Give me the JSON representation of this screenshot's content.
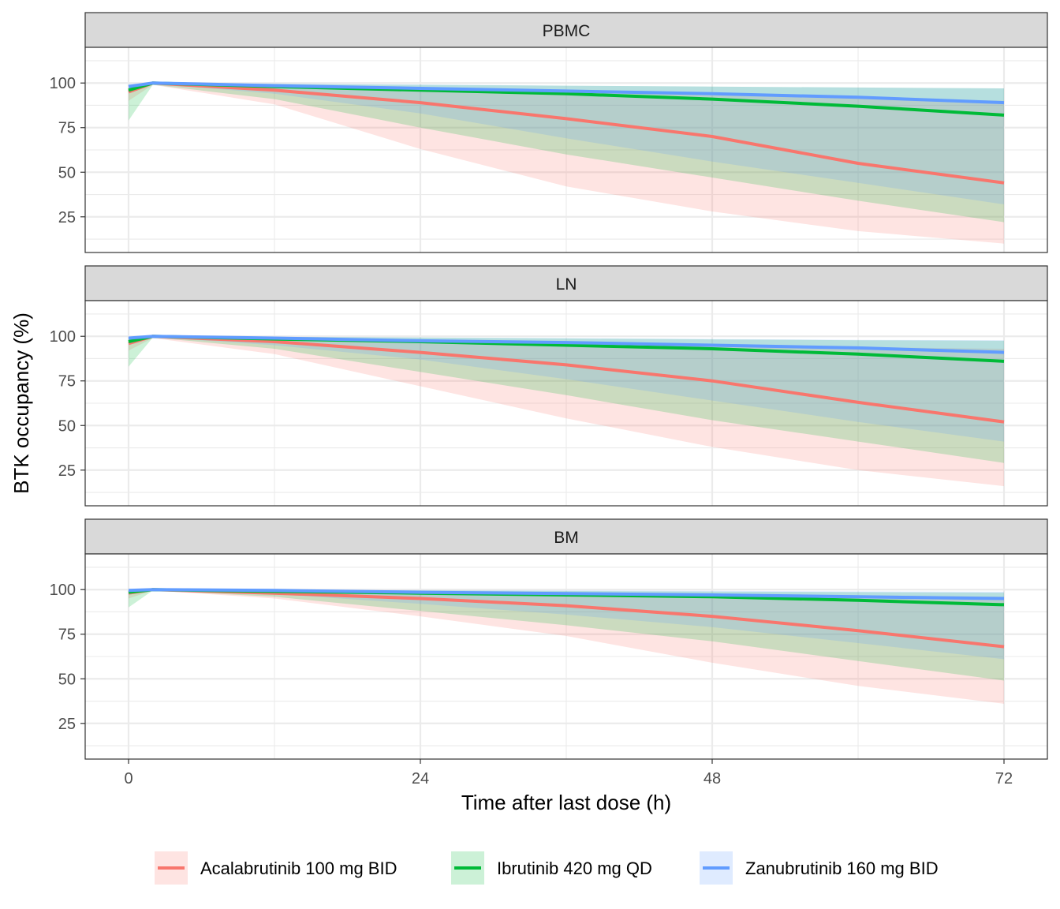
{
  "chart_data": {
    "type": "line",
    "xlabel": "Time after last dose (h)",
    "ylabel": "BTK occupancy (%)",
    "xlim": [
      0,
      72
    ],
    "ylim": [
      5,
      120
    ],
    "x_ticks": [
      0,
      24,
      48,
      72
    ],
    "y_ticks": [
      25,
      50,
      75,
      100
    ],
    "grid": true,
    "legend_position": "bottom",
    "series_styles": [
      {
        "name": "Acalabrutinib 100 mg BID",
        "color": "#F8766D"
      },
      {
        "name": "Ibrutinib 420 mg QD",
        "color": "#00BA38"
      },
      {
        "name": "Zanubrutinib 160 mg BID",
        "color": "#619CFF"
      }
    ],
    "panels": [
      {
        "label": "PBMC",
        "series": [
          {
            "name": "Acalabrutinib 100 mg BID",
            "x": [
              0,
              2,
              12,
              24,
              36,
              48,
              60,
              72
            ],
            "y": [
              95,
              100,
              96,
              89,
              80,
              70,
              55,
              44
            ],
            "lower": [
              90,
              99,
              88,
              63,
              42,
              28,
              17,
              10
            ],
            "upper": [
              98,
              100,
              99,
              97,
              95,
              93,
              92,
              90
            ]
          },
          {
            "name": "Ibrutinib 420 mg QD",
            "x": [
              0,
              2,
              12,
              24,
              36,
              48,
              60,
              72
            ],
            "y": [
              96,
              100,
              98,
              96,
              94,
              91,
              87,
              82
            ],
            "lower": [
              79,
              99,
              91,
              75,
              60,
              47,
              34,
              22
            ],
            "upper": [
              99,
              100,
              99.5,
              99,
              98.5,
              98,
              97.5,
              97
            ]
          },
          {
            "name": "Zanubrutinib 160 mg BID",
            "x": [
              0,
              2,
              12,
              24,
              36,
              48,
              60,
              72
            ],
            "y": [
              98,
              100,
              98.5,
              97,
              95.5,
              94,
              92,
              89
            ],
            "lower": [
              94,
              99.5,
              94,
              83,
              69,
              56,
              44,
              32
            ],
            "upper": [
              99.5,
              100,
              99.7,
              99.2,
              98.5,
              98,
              97.5,
              97
            ]
          }
        ]
      },
      {
        "label": "LN",
        "series": [
          {
            "name": "Acalabrutinib 100 mg BID",
            "x": [
              0,
              2,
              12,
              24,
              36,
              48,
              60,
              72
            ],
            "y": [
              96,
              100,
              97,
              91,
              84,
              75,
              63,
              52
            ],
            "lower": [
              92,
              99,
              90,
              72,
              54,
              38,
              25,
              16
            ],
            "upper": [
              98.5,
              100,
              99.2,
              98,
              96.5,
              95,
              94,
              93
            ]
          },
          {
            "name": "Ibrutinib 420 mg QD",
            "x": [
              0,
              2,
              12,
              24,
              36,
              48,
              60,
              72
            ],
            "y": [
              97,
              100,
              98.5,
              97,
              95,
              93,
              90,
              86
            ],
            "lower": [
              83,
              99.3,
              93,
              80,
              67,
              53,
              41,
              29
            ],
            "upper": [
              99.3,
              100,
              99.7,
              99.3,
              98.8,
              98.3,
              97.8,
              97.5
            ]
          },
          {
            "name": "Zanubrutinib 160 mg BID",
            "x": [
              0,
              2,
              12,
              24,
              36,
              48,
              60,
              72
            ],
            "y": [
              99,
              100,
              99,
              97.5,
              96.5,
              95,
              93.5,
              91
            ],
            "lower": [
              95,
              99.5,
              95,
              87,
              76,
              64,
              52,
              41
            ],
            "upper": [
              99.6,
              100,
              99.8,
              99.4,
              99,
              98.5,
              98,
              97.8
            ]
          }
        ]
      },
      {
        "label": "BM",
        "series": [
          {
            "name": "Acalabrutinib 100 mg BID",
            "x": [
              0,
              2,
              12,
              24,
              36,
              48,
              60,
              72
            ],
            "y": [
              98,
              100,
              98,
              95,
              91,
              85,
              77,
              68
            ],
            "lower": [
              95,
              99.5,
              95,
              85,
              74,
              59,
              46,
              36
            ],
            "upper": [
              99.3,
              100,
              99.6,
              99,
              98.3,
              97.5,
              96.8,
              96
            ]
          },
          {
            "name": "Ibrutinib 420 mg QD",
            "x": [
              0,
              2,
              12,
              24,
              36,
              48,
              60,
              72
            ],
            "y": [
              98.5,
              100,
              99,
              98,
              97,
              96,
              94,
              91.5
            ],
            "lower": [
              90,
              99.5,
              96,
              88,
              80,
              71,
              60,
              49
            ],
            "upper": [
              99.6,
              100,
              99.8,
              99.5,
              99.2,
              98.9,
              98.6,
              98.3
            ]
          },
          {
            "name": "Zanubrutinib 160 mg BID",
            "x": [
              0,
              2,
              12,
              24,
              36,
              48,
              60,
              72
            ],
            "y": [
              99.5,
              100,
              99.5,
              98.5,
              97.8,
              97,
              96,
              95
            ],
            "lower": [
              97,
              99.8,
              97.5,
              92,
              86,
              79,
              70,
              61
            ],
            "upper": [
              99.8,
              100,
              99.9,
              99.7,
              99.5,
              99.3,
              99,
              98.8
            ]
          }
        ]
      }
    ]
  }
}
